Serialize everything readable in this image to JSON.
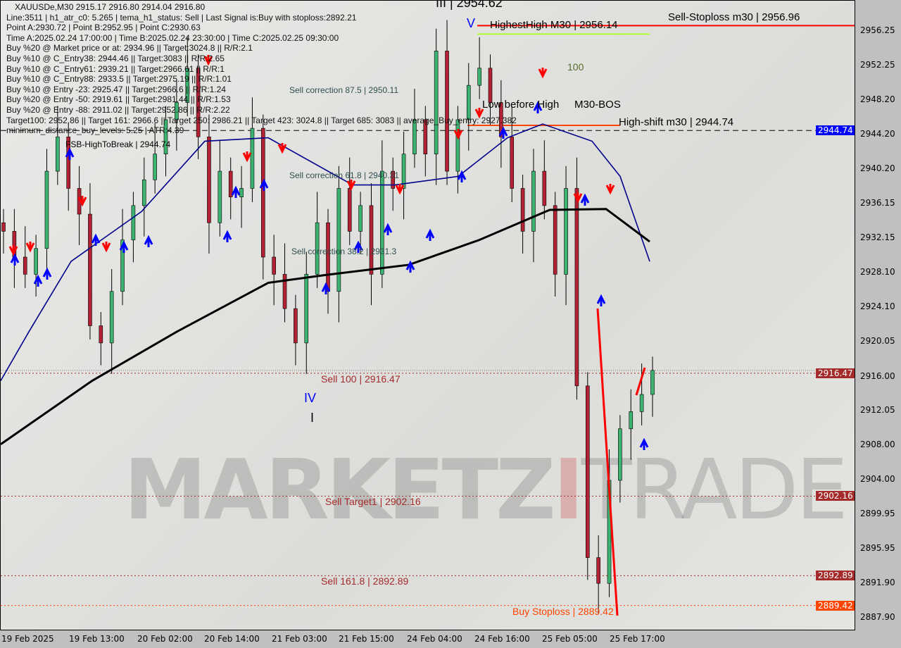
{
  "chart_data": {
    "type": "candlestick",
    "symbol_line": "XAUUSDe,M30  2915.17 2916.80 2914.04 2916.80",
    "ylim": [
      2886.5,
      2959.5
    ],
    "y_ticks": [
      "2956.25",
      "2952.25",
      "2948.20",
      "2944.20",
      "2940.20",
      "2936.15",
      "2932.15",
      "2928.10",
      "2924.10",
      "2920.05",
      "2916.00",
      "2912.05",
      "2908.00",
      "2904.00",
      "2899.95",
      "2895.95",
      "2891.90",
      "2887.90"
    ],
    "x_ticks": [
      "19 Feb 2025",
      "19 Feb 13:00",
      "20 Feb 02:00",
      "20 Feb 14:00",
      "21 Feb 03:00",
      "21 Feb 15:00",
      "24 Feb 04:00",
      "24 Feb 16:00",
      "25 Feb 05:00",
      "25 Feb 17:00"
    ],
    "close": [
      2933,
      2930,
      2928,
      2931,
      2940,
      2944,
      2938,
      2935,
      2922,
      2920,
      2926,
      2932,
      2936,
      2939,
      2942,
      2946,
      2948,
      2952,
      2944,
      2934,
      2940,
      2937,
      2938,
      2945,
      2930,
      2928,
      2924,
      2920,
      2928,
      2934,
      2926,
      2938,
      2933,
      2936,
      2928,
      2940,
      2938,
      2942,
      2946,
      2942,
      2954,
      2940,
      2946,
      2950,
      2952,
      2948,
      2944,
      2938,
      2933,
      2940,
      2936,
      2928,
      2938,
      2915,
      2895,
      2892,
      2904,
      2910,
      2912,
      2914,
      2916.8
    ],
    "ma_blue": [
      2915.6,
      2921.3,
      2929.5,
      2935.3,
      2943.5,
      2943.9,
      2938.4,
      2938.4,
      2939.4,
      2943.9,
      2945.5,
      2943.5,
      2939.4,
      2929.5
    ],
    "ma_black": [
      2908.2,
      2915.6,
      2921.3,
      2927.0,
      2927.9,
      2929.1,
      2932.0,
      2935.5,
      2935.6,
      2931.8
    ],
    "levels": {
      "sell_stoploss": 2956.96,
      "highest_high": 2956.14,
      "high_shift": 2944.74,
      "sell_100": 2916.47,
      "sell_target1": 2902.16,
      "sell_161": 2892.89,
      "buy_stoploss": 2889.42,
      "current": 2916.8
    },
    "price_tags": [
      {
        "text": "2944.74",
        "color": "#0000ff"
      },
      {
        "text": "2916.47",
        "color": "#a52a2a"
      },
      {
        "text": "2902.16",
        "color": "#a52a2a"
      },
      {
        "text": "2892.89",
        "color": "#a52a2a"
      },
      {
        "text": "2889.42",
        "color": "#ff4500"
      }
    ],
    "colors": {
      "bull": "#3cb371",
      "bear": "#b22234",
      "ma_blue": "#00008b",
      "ma_black": "#000000",
      "stop": "#ff0000",
      "orange": "#ff4500",
      "green_line": "#adff2f"
    }
  },
  "info_lines": [
    "XAUUSDe,M30  2915.17 2916.80 2914.04 2916.80",
    "Line:3511 | h1_atr_c0: 5.265 | tema_h1_status: Sell | Last Signal is:Buy with stoploss:2892.21",
    "Point A:2930.72 | Point B:2952.95 | Point C:2930.63",
    "Time A:2025.02.24 17:00:00 | Time B:2025.02.24 23:30:00 | Time C:2025.02.25 09:30:00",
    "Buy %20 @ Market price or at: 2934.96 || Target:3024.8 || R/R:2.1",
    "Buy %10 @ C_Entry38: 2944.46 || Target:3083 || R/R:2.65",
    "Buy %10 @ C_Entry61: 2939.21 || Target:2966.61 || R/R:1",
    "Buy %10 @ C_Entry88: 2933.5 || Target:2975.19 || R/R:1.01",
    "Buy %10 @ Entry -23: 2925.47 || Target:2966.6 || R/R:1.24",
    "Buy %20 @ Entry -50: 2919.61 || Target:2981.44 || R/R:1.53",
    "Buy %20 @ Entry -88: 2911.02 || Target:2952.86 || R/R:2.22",
    "Target100: 2952.86 || Target 161: 2966.6 || Target 250: 2986.21 || Target 423: 3024.8 || Target 685: 3083 || average_Buy_entry: 2927.382",
    "minimum_distance_buy_levels: 5.25 | ATR:4.39"
  ],
  "labels": {
    "wave_iii": "III | 2954.62",
    "wave_v": "V",
    "highest_high": "HighestHigh   M30 | 2956.14",
    "sell_stoploss": "Sell-Stoploss m30 | 2956.96",
    "hundred": "100",
    "low_before_high": "Low before High",
    "bos": "M30-BOS",
    "high_shift": "High-shift m30 | 2944.74",
    "fsb": "FSB-HighToBreak | 2944.74",
    "sell_corr_875": "Sell correction 87.5 | 2950.11",
    "sell_corr_618": "Sell correction 61.8 | 2940.31",
    "sell_corr_382": "Sell correction 38.2 | 2931.3",
    "sell_100": "Sell 100 | 2916.47",
    "wave_iv": "IV",
    "wave_i": "I",
    "sell_target1": "Sell Target1 | 2902.16",
    "sell_161": "Sell 161.8 | 2892.89",
    "buy_stoploss": "Buy Stoploss | 2889.42"
  },
  "watermark": {
    "a": "MARKETZ",
    "b": "I",
    "c": "TRADE"
  }
}
